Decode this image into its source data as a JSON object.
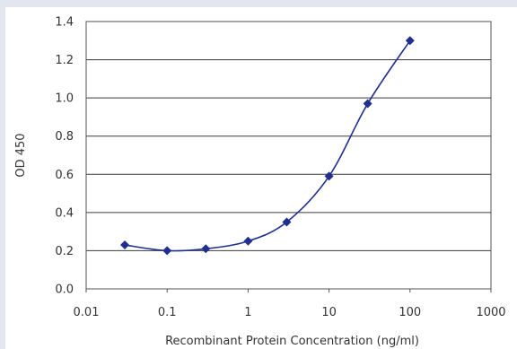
{
  "chart_data": {
    "type": "line",
    "title": "",
    "xlabel": "Recombinant Protein Concentration (ng/ml)",
    "ylabel": "OD 450",
    "x_scale": "log",
    "xlim": [
      0.01,
      1000
    ],
    "ylim": [
      0.0,
      1.4
    ],
    "x_ticks": [
      "0.01",
      "0.1",
      "1",
      "10",
      "100",
      "1000"
    ],
    "y_ticks": [
      "0.0",
      "0.2",
      "0.4",
      "0.6",
      "0.8",
      "1.0",
      "1.2",
      "1.4"
    ],
    "grid": "horizontal",
    "series": [
      {
        "color": "#1f2f8f",
        "x": [
          0.03,
          0.1,
          0.3,
          1,
          3,
          10,
          30,
          100
        ],
        "y": [
          0.23,
          0.2,
          0.21,
          0.25,
          0.35,
          0.59,
          0.97,
          1.3
        ]
      }
    ]
  }
}
